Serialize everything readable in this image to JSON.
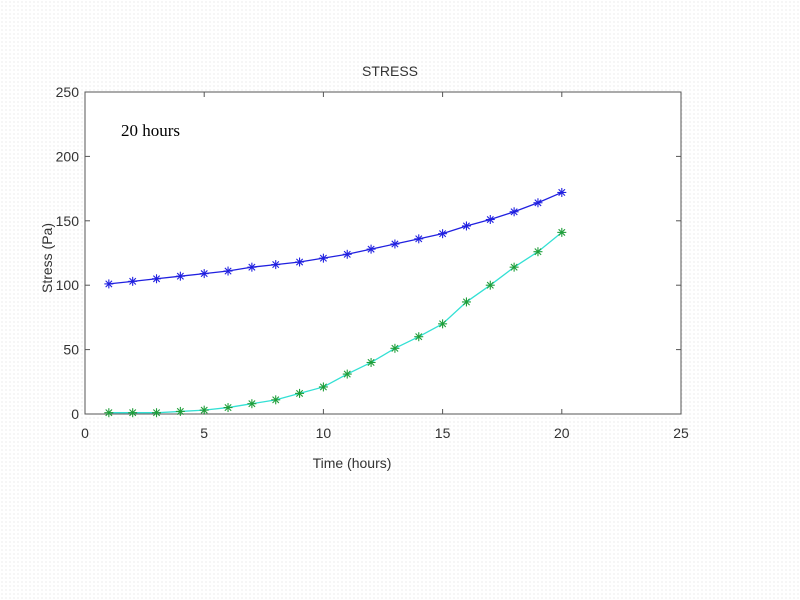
{
  "chart_data": {
    "type": "line",
    "title": "STRESS",
    "xlabel": "Time (hours)",
    "ylabel": "Stress (Pa)",
    "annotation": "20 hours",
    "xlim": [
      0,
      25
    ],
    "ylim": [
      0,
      250
    ],
    "xticks": [
      0,
      5,
      10,
      15,
      20,
      25
    ],
    "yticks": [
      0,
      50,
      100,
      150,
      200,
      250
    ],
    "grid": false,
    "x": [
      1,
      2,
      3,
      4,
      5,
      6,
      7,
      8,
      9,
      10,
      11,
      12,
      13,
      14,
      15,
      16,
      17,
      18,
      19,
      20
    ],
    "series": [
      {
        "line_color": "#2020e0",
        "marker_color": "#2020e0",
        "marker": "asterisk",
        "values": [
          101,
          103,
          105,
          107,
          109,
          111,
          114,
          116,
          118,
          121,
          124,
          128,
          132,
          136,
          140,
          146,
          151,
          157,
          164,
          172
        ]
      },
      {
        "line_color": "#33e0d4",
        "marker_color": "#1f9e3a",
        "marker": "asterisk",
        "values": [
          1,
          1,
          1,
          2,
          3,
          5,
          8,
          11,
          16,
          21,
          31,
          40,
          51,
          60,
          70,
          87,
          100,
          114,
          126,
          141
        ]
      }
    ]
  }
}
